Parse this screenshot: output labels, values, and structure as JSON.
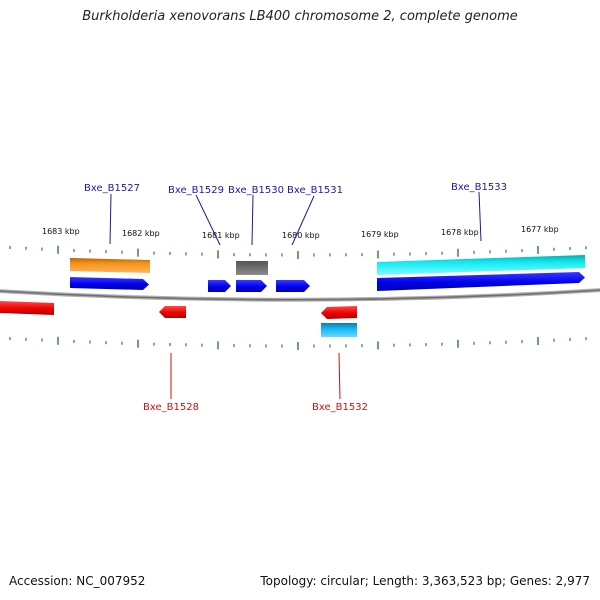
{
  "title": "Burkholderia xenovorans LB400 chromosome 2, complete genome",
  "footer": {
    "accession": "Accession: NC_007952",
    "stats": "Topology: circular; Length: 3,363,523 bp; Genes: 2,977"
  },
  "colors": {
    "backbone": "#8a8a8a",
    "tick": "#2e7d32",
    "gene_forward": "#0000ee",
    "gene_reverse": "#ee0000",
    "label_top": "#1a1aa6",
    "label_bottom": "#cc1111",
    "feature_orange": "#f39419",
    "feature_gray": "#707070",
    "feature_cyan": "#10e8f0",
    "feature_blue_light": "#12b8ee"
  },
  "scale_labels": [
    "1683 kbp",
    "1682 kbp",
    "1681 kbp",
    "1680 kbp",
    "1679 kbp",
    "1678 kbp",
    "1677 kbp"
  ],
  "gene_labels_top": [
    "Bxe_B1527",
    "Bxe_B1529",
    "Bxe_B1530",
    "Bxe_B1531",
    "Bxe_B1533"
  ],
  "gene_labels_bottom": [
    "Bxe_B1528",
    "Bxe_B1532"
  ]
}
